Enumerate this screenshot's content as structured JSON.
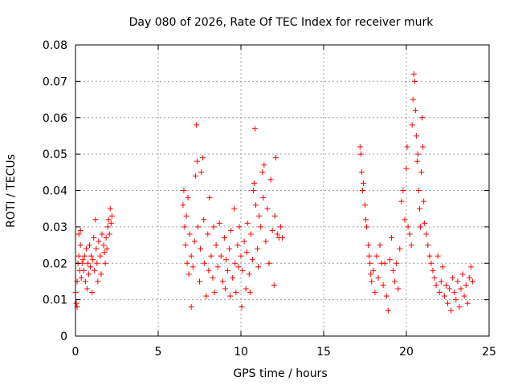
{
  "chart_data": {
    "type": "scatter",
    "title": "Day 080 of 2026, Rate Of TEC Index for receiver murk",
    "xlabel": "GPS time / hours",
    "ylabel": "ROTI / TECUs",
    "xlim": [
      0,
      25
    ],
    "ylim": [
      0,
      0.08
    ],
    "xticks": [
      0,
      5,
      10,
      15,
      20,
      25
    ],
    "xtick_labels": [
      "0",
      "5",
      "10",
      "15",
      "20",
      "25"
    ],
    "yticks": [
      0,
      0.01,
      0.02,
      0.03,
      0.04,
      0.05,
      0.06,
      0.07,
      0.08
    ],
    "ytick_labels": [
      "0",
      "0.01",
      "0.02",
      "0.03",
      "0.04",
      "0.05",
      "0.06",
      "0.07",
      "0.08"
    ],
    "grid": true,
    "marker": "+",
    "marker_color": "#ff0000",
    "series": [
      {
        "points": [
          [
            0.0,
            0.012
          ],
          [
            0.05,
            0.009
          ],
          [
            0.1,
            0.008
          ],
          [
            0.1,
            0.015
          ],
          [
            0.15,
            0.02
          ],
          [
            0.2,
            0.022
          ],
          [
            0.2,
            0.028
          ],
          [
            0.25,
            0.018
          ],
          [
            0.3,
            0.025
          ],
          [
            0.3,
            0.029
          ],
          [
            0.35,
            0.016
          ],
          [
            0.4,
            0.02
          ],
          [
            0.45,
            0.021
          ],
          [
            0.5,
            0.018
          ],
          [
            0.55,
            0.022
          ],
          [
            0.6,
            0.015
          ],
          [
            0.65,
            0.024
          ],
          [
            0.7,
            0.013
          ],
          [
            0.75,
            0.02
          ],
          [
            0.8,
            0.017
          ],
          [
            0.85,
            0.025
          ],
          [
            0.9,
            0.019
          ],
          [
            0.95,
            0.022
          ],
          [
            1.0,
            0.012
          ],
          [
            1.05,
            0.021
          ],
          [
            1.1,
            0.027
          ],
          [
            1.15,
            0.018
          ],
          [
            1.2,
            0.032
          ],
          [
            1.25,
            0.024
          ],
          [
            1.3,
            0.02
          ],
          [
            1.35,
            0.015
          ],
          [
            1.4,
            0.026
          ],
          [
            1.5,
            0.022
          ],
          [
            1.55,
            0.017
          ],
          [
            1.6,
            0.028
          ],
          [
            1.7,
            0.025
          ],
          [
            1.75,
            0.023
          ],
          [
            1.8,
            0.02
          ],
          [
            1.85,
            0.027
          ],
          [
            1.9,
            0.024
          ],
          [
            1.95,
            0.03
          ],
          [
            2.0,
            0.032
          ],
          [
            2.05,
            0.028
          ],
          [
            2.1,
            0.035
          ],
          [
            2.15,
            0.031
          ],
          [
            2.2,
            0.033
          ],
          [
            6.5,
            0.036
          ],
          [
            6.55,
            0.04
          ],
          [
            6.6,
            0.03
          ],
          [
            6.65,
            0.025
          ],
          [
            6.7,
            0.033
          ],
          [
            6.75,
            0.02
          ],
          [
            6.8,
            0.038
          ],
          [
            6.85,
            0.017
          ],
          [
            6.9,
            0.028
          ],
          [
            7.0,
            0.022
          ],
          [
            7.0,
            0.008
          ],
          [
            7.1,
            0.019
          ],
          [
            7.2,
            0.026
          ],
          [
            7.25,
            0.044
          ],
          [
            7.3,
            0.058
          ],
          [
            7.35,
            0.048
          ],
          [
            7.4,
            0.03
          ],
          [
            7.5,
            0.015
          ],
          [
            7.55,
            0.024
          ],
          [
            7.6,
            0.045
          ],
          [
            7.7,
            0.049
          ],
          [
            7.75,
            0.032
          ],
          [
            7.8,
            0.02
          ],
          [
            7.9,
            0.011
          ],
          [
            8.0,
            0.028
          ],
          [
            8.05,
            0.018
          ],
          [
            8.1,
            0.038
          ],
          [
            8.2,
            0.022
          ],
          [
            8.3,
            0.016
          ],
          [
            8.35,
            0.03
          ],
          [
            8.4,
            0.012
          ],
          [
            8.5,
            0.025
          ],
          [
            8.6,
            0.019
          ],
          [
            8.7,
            0.031
          ],
          [
            8.8,
            0.022
          ],
          [
            8.9,
            0.015
          ],
          [
            9.0,
            0.027
          ],
          [
            9.05,
            0.013
          ],
          [
            9.1,
            0.021
          ],
          [
            9.2,
            0.018
          ],
          [
            9.3,
            0.024
          ],
          [
            9.35,
            0.011
          ],
          [
            9.4,
            0.029
          ],
          [
            9.5,
            0.016
          ],
          [
            9.6,
            0.035
          ],
          [
            9.65,
            0.02
          ],
          [
            9.7,
            0.012
          ],
          [
            9.8,
            0.025
          ],
          [
            9.85,
            0.019
          ],
          [
            9.9,
            0.03
          ],
          [
            10.0,
            0.022
          ],
          [
            10.05,
            0.008
          ],
          [
            10.1,
            0.018
          ],
          [
            10.2,
            0.026
          ],
          [
            10.3,
            0.013
          ],
          [
            10.35,
            0.023
          ],
          [
            10.4,
            0.031
          ],
          [
            10.5,
            0.017
          ],
          [
            10.55,
            0.012
          ],
          [
            10.6,
            0.028
          ],
          [
            10.7,
            0.021
          ],
          [
            10.75,
            0.04
          ],
          [
            10.8,
            0.042
          ],
          [
            10.85,
            0.057
          ],
          [
            10.9,
            0.036
          ],
          [
            11.0,
            0.024
          ],
          [
            11.05,
            0.019
          ],
          [
            11.1,
            0.033
          ],
          [
            11.2,
            0.03
          ],
          [
            11.3,
            0.045
          ],
          [
            11.35,
            0.038
          ],
          [
            11.4,
            0.047
          ],
          [
            11.5,
            0.026
          ],
          [
            11.6,
            0.035
          ],
          [
            11.7,
            0.02
          ],
          [
            11.8,
            0.043
          ],
          [
            11.9,
            0.029
          ],
          [
            12.0,
            0.014
          ],
          [
            12.05,
            0.033
          ],
          [
            12.1,
            0.049
          ],
          [
            12.2,
            0.028
          ],
          [
            12.3,
            0.027
          ],
          [
            12.4,
            0.03
          ],
          [
            12.5,
            0.027
          ],
          [
            17.2,
            0.052
          ],
          [
            17.25,
            0.05
          ],
          [
            17.3,
            0.045
          ],
          [
            17.35,
            0.04
          ],
          [
            17.4,
            0.042
          ],
          [
            17.5,
            0.036
          ],
          [
            17.55,
            0.032
          ],
          [
            17.6,
            0.03
          ],
          [
            17.7,
            0.025
          ],
          [
            17.75,
            0.022
          ],
          [
            17.8,
            0.02
          ],
          [
            17.85,
            0.017
          ],
          [
            17.9,
            0.015
          ],
          [
            18.0,
            0.018
          ],
          [
            18.1,
            0.012
          ],
          [
            18.2,
            0.022
          ],
          [
            18.3,
            0.016
          ],
          [
            18.4,
            0.025
          ],
          [
            18.5,
            0.02
          ],
          [
            18.6,
            0.014
          ],
          [
            18.7,
            0.02
          ],
          [
            18.8,
            0.011
          ],
          [
            18.9,
            0.007
          ],
          [
            19.0,
            0.021
          ],
          [
            19.1,
            0.027
          ],
          [
            19.2,
            0.018
          ],
          [
            19.3,
            0.015
          ],
          [
            19.4,
            0.02
          ],
          [
            19.5,
            0.013
          ],
          [
            19.6,
            0.024
          ],
          [
            19.7,
            0.037
          ],
          [
            19.8,
            0.04
          ],
          [
            19.9,
            0.032
          ],
          [
            20.0,
            0.046
          ],
          [
            20.05,
            0.052
          ],
          [
            20.1,
            0.03
          ],
          [
            20.2,
            0.028
          ],
          [
            20.3,
            0.025
          ],
          [
            20.35,
            0.058
          ],
          [
            20.4,
            0.065
          ],
          [
            20.45,
            0.072
          ],
          [
            20.5,
            0.07
          ],
          [
            20.55,
            0.062
          ],
          [
            20.6,
            0.055
          ],
          [
            20.65,
            0.048
          ],
          [
            20.7,
            0.05
          ],
          [
            20.75,
            0.04
          ],
          [
            20.8,
            0.035
          ],
          [
            20.85,
            0.03
          ],
          [
            20.9,
            0.045
          ],
          [
            20.95,
            0.06
          ],
          [
            21.0,
            0.052
          ],
          [
            21.05,
            0.037
          ],
          [
            21.1,
            0.031
          ],
          [
            21.2,
            0.028
          ],
          [
            21.3,
            0.025
          ],
          [
            21.4,
            0.022
          ],
          [
            21.5,
            0.02
          ],
          [
            21.6,
            0.018
          ],
          [
            21.7,
            0.016
          ],
          [
            21.8,
            0.014
          ],
          [
            21.9,
            0.022
          ],
          [
            22.0,
            0.012
          ],
          [
            22.1,
            0.015
          ],
          [
            22.2,
            0.019
          ],
          [
            22.3,
            0.011
          ],
          [
            22.4,
            0.014
          ],
          [
            22.5,
            0.009
          ],
          [
            22.6,
            0.013
          ],
          [
            22.7,
            0.007
          ],
          [
            22.8,
            0.016
          ],
          [
            22.9,
            0.012
          ],
          [
            23.0,
            0.01
          ],
          [
            23.1,
            0.015
          ],
          [
            23.2,
            0.008
          ],
          [
            23.3,
            0.013
          ],
          [
            23.4,
            0.017
          ],
          [
            23.5,
            0.011
          ],
          [
            23.6,
            0.014
          ],
          [
            23.7,
            0.009
          ],
          [
            23.8,
            0.016
          ],
          [
            23.9,
            0.019
          ],
          [
            24.0,
            0.015
          ]
        ]
      }
    ]
  }
}
